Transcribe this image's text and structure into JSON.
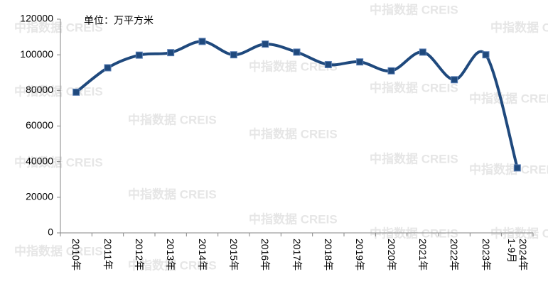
{
  "chart_data": {
    "type": "line",
    "annotation": "单位：万平方米",
    "watermark": "中指数据 CREIS",
    "categories": [
      "2010年",
      "2011年",
      "2012年",
      "2013年",
      "2014年",
      "2015年",
      "2016年",
      "2017年",
      "2018年",
      "2019年",
      "2020年",
      "2021年",
      "2022年",
      "2023年",
      "2024年1-9月"
    ],
    "values": [
      79000,
      92700,
      99800,
      101200,
      107500,
      100000,
      106000,
      101500,
      94500,
      96000,
      91000,
      101500,
      86000,
      100000,
      36500
    ],
    "color": "#1f497d",
    "smooth": true,
    "ylim": [
      0,
      120000
    ],
    "yticks": [
      0,
      20000,
      40000,
      60000,
      80000,
      100000,
      120000
    ],
    "grid": false
  }
}
